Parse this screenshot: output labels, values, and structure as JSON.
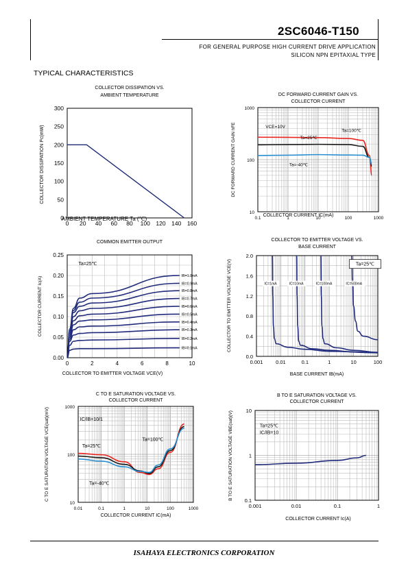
{
  "header": {
    "part_number": "2SC6046-T150",
    "line1": "FOR GENERAL PURPOSE HIGH CURRENT DRIVE APPLICATION",
    "line2": "SILICON NPN EPITAXIAL TYPE"
  },
  "section_title": "TYPICAL CHARACTERISTICS",
  "footer": "ISAHAYA ELECTRONICS CORPORATION",
  "chart_data": [
    {
      "type": "line",
      "title": [
        "COLLECTOR DISSIPATION VS.",
        "AMBIENT TEMPERATURE"
      ],
      "xlabel": "AMBIENT TEMPERATURE Ta (℃)",
      "ylabel": "COLLECTOR DISSIPATION  Pc(mW)",
      "xlim": [
        0,
        160
      ],
      "ylim": [
        0,
        300
      ],
      "x_ticks": [
        "0",
        "20",
        "40",
        "60",
        "80",
        "100",
        "120",
        "140",
        "160"
      ],
      "y_ticks": [
        "0",
        "50",
        "100",
        "150",
        "200",
        "250",
        "300"
      ],
      "grid": false,
      "series": [
        {
          "points": [
            [
              0,
              200
            ],
            [
              25,
              200
            ],
            [
              150,
              0
            ]
          ]
        }
      ]
    },
    {
      "type": "line",
      "title": [
        "DC FORWARD CURRENT GAIN VS.",
        "COLLECTOR CURRENT"
      ],
      "xlabel": "COLLECTOR CURRENT  IC(mA)",
      "ylabel": "DC FORWARD CURRENT GAIN  hFE",
      "xscale": "log",
      "yscale": "log",
      "xlim": [
        0.1,
        1000
      ],
      "ylim": [
        10,
        1000
      ],
      "x_ticks": [
        "0.1",
        "1",
        "10",
        "100",
        "1000"
      ],
      "y_ticks": [
        "10",
        "100",
        "1000"
      ],
      "grid": true,
      "annotations": [
        "VCE=10V",
        "Ta=25℃",
        "Ta=100℃",
        "Ta=-40℃"
      ],
      "series": [
        {
          "color": "#e8261e",
          "points": [
            [
              0.1,
              270
            ],
            [
              1,
              268
            ],
            [
              10,
              265
            ],
            [
              100,
              255
            ],
            [
              300,
              235
            ],
            [
              500,
              120
            ],
            [
              600,
              50
            ]
          ]
        },
        {
          "color": "#1a1a1a",
          "points": [
            [
              0.1,
              193
            ],
            [
              1,
              195
            ],
            [
              10,
              197
            ],
            [
              100,
              195
            ],
            [
              300,
              180
            ],
            [
              500,
              110
            ],
            [
              600,
              75
            ]
          ]
        },
        {
          "color": "#2a8fd0",
          "points": [
            [
              0.1,
              120
            ],
            [
              1,
              122
            ],
            [
              10,
              125
            ],
            [
              100,
              123
            ],
            [
              300,
              122
            ],
            [
              500,
              110
            ],
            [
              600,
              82
            ]
          ]
        }
      ]
    },
    {
      "type": "line",
      "title": [
        "COMMON EMITTER OUTPUT"
      ],
      "xlabel": "COLLECTOR TO EMITTER VOLTAGE  VCE(V)",
      "ylabel": "COLLECTOR CURRENT  Ic(A)",
      "xlim": [
        0,
        10
      ],
      "ylim": [
        0,
        0.25
      ],
      "x_ticks": [
        "0",
        "2",
        "4",
        "6",
        "8",
        "10"
      ],
      "y_ticks": [
        "0.00",
        "0.05",
        "0.10",
        "0.15",
        "0.20",
        "0.25"
      ],
      "grid": true,
      "annotations": [
        "Ta=25℃"
      ],
      "series": [
        {
          "name": "IB=1.0mA",
          "points": [
            [
              0,
              0
            ],
            [
              0.2,
              0.07
            ],
            [
              0.5,
              0.12
            ],
            [
              1,
              0.145
            ],
            [
              2,
              0.156
            ],
            [
              9,
              0.2
            ]
          ]
        },
        {
          "name": "IB=0.9mA",
          "points": [
            [
              0,
              0
            ],
            [
              0.2,
              0.07
            ],
            [
              0.5,
              0.115
            ],
            [
              1,
              0.135
            ],
            [
              2,
              0.145
            ],
            [
              9,
              0.181
            ]
          ]
        },
        {
          "name": "IB=0.8mA",
          "points": [
            [
              0,
              0
            ],
            [
              0.2,
              0.065
            ],
            [
              0.5,
              0.11
            ],
            [
              1,
              0.125
            ],
            [
              2,
              0.133
            ],
            [
              9,
              0.163
            ]
          ]
        },
        {
          "name": "IB=0.7mA",
          "points": [
            [
              0,
              0
            ],
            [
              0.2,
              0.06
            ],
            [
              0.5,
              0.1
            ],
            [
              1,
              0.114
            ],
            [
              2,
              0.12
            ],
            [
              9,
              0.144
            ]
          ]
        },
        {
          "name": "IB=0.6mA",
          "points": [
            [
              0,
              0
            ],
            [
              0.2,
              0.055
            ],
            [
              0.5,
              0.09
            ],
            [
              1,
              0.102
            ],
            [
              2,
              0.106
            ],
            [
              9,
              0.125
            ]
          ]
        },
        {
          "name": "IB=0.5mA",
          "points": [
            [
              0,
              0
            ],
            [
              0.2,
              0.05
            ],
            [
              0.5,
              0.08
            ],
            [
              1,
              0.089
            ],
            [
              2,
              0.092
            ],
            [
              9,
              0.106
            ]
          ]
        },
        {
          "name": "IB=0.4mA",
          "points": [
            [
              0,
              0
            ],
            [
              0.2,
              0.045
            ],
            [
              0.5,
              0.068
            ],
            [
              1,
              0.075
            ],
            [
              2,
              0.077
            ],
            [
              9,
              0.087
            ]
          ]
        },
        {
          "name": "IB=0.3mA",
          "points": [
            [
              0,
              0
            ],
            [
              0.2,
              0.04
            ],
            [
              0.5,
              0.055
            ],
            [
              1,
              0.059
            ],
            [
              2,
              0.061
            ],
            [
              9,
              0.068
            ]
          ]
        },
        {
          "name": "IB=0.2mA",
          "points": [
            [
              0,
              0
            ],
            [
              0.2,
              0.03
            ],
            [
              0.5,
              0.04
            ],
            [
              1,
              0.042
            ],
            [
              2,
              0.043
            ],
            [
              9,
              0.047
            ]
          ]
        },
        {
          "name": "IB=0.1mA",
          "points": [
            [
              0,
              0
            ],
            [
              0.2,
              0.018
            ],
            [
              0.5,
              0.021
            ],
            [
              1,
              0.022
            ],
            [
              2,
              0.022
            ],
            [
              9,
              0.024
            ]
          ]
        }
      ]
    },
    {
      "type": "line",
      "title": [
        "COLLECTOR TO EMITTER VOLTAGE VS.",
        "BASE CURRENT"
      ],
      "xlabel": "BASE CURRENT  IB(mA)",
      "ylabel": "COLLECTOR TO EMITTER VOLTAGE  VCE(V)",
      "xscale": "log",
      "xlim": [
        0.001,
        100
      ],
      "ylim": [
        0,
        2
      ],
      "x_ticks": [
        "0.001",
        "0.01",
        "0.1",
        "1",
        "10",
        "100"
      ],
      "y_ticks": [
        "0.0",
        "0.4",
        "0.8",
        "1.2",
        "1.6",
        "2.0"
      ],
      "grid": true,
      "annotations": [
        "Ta=25℃"
      ],
      "series": [
        {
          "name": "IC=1mA",
          "points": [
            [
              0.0045,
              2
            ],
            [
              0.0047,
              1.2
            ],
            [
              0.005,
              0.6
            ],
            [
              0.0055,
              0.35
            ],
            [
              0.0065,
              0.25
            ],
            [
              0.02,
              0.18
            ],
            [
              0.1,
              0.14
            ],
            [
              1,
              0.1
            ],
            [
              100,
              0.07
            ]
          ]
        },
        {
          "name": "IC=10mA",
          "points": [
            [
              0.045,
              2
            ],
            [
              0.047,
              1.2
            ],
            [
              0.05,
              0.6
            ],
            [
              0.055,
              0.3
            ],
            [
              0.065,
              0.22
            ],
            [
              0.2,
              0.15
            ],
            [
              1,
              0.12
            ],
            [
              10,
              0.09
            ],
            [
              100,
              0.07
            ]
          ]
        },
        {
          "name": "IC=100mA",
          "points": [
            [
              0.45,
              2
            ],
            [
              0.47,
              1.2
            ],
            [
              0.5,
              0.6
            ],
            [
              0.55,
              0.35
            ],
            [
              0.65,
              0.25
            ],
            [
              2,
              0.17
            ],
            [
              10,
              0.12
            ],
            [
              100,
              0.08
            ]
          ]
        },
        {
          "name": "IC=500mA",
          "points": [
            [
              8.5,
              2
            ],
            [
              9,
              1.5
            ],
            [
              10,
              1.0
            ],
            [
              12,
              0.7
            ],
            [
              15,
              0.5
            ],
            [
              25,
              0.4
            ],
            [
              100,
              0.33
            ]
          ]
        }
      ]
    },
    {
      "type": "line",
      "title": [
        "C TO E SATURATION VOLTAGE VS.",
        "COLLECTOR CURRENT"
      ],
      "xlabel": "COLLECTOR CURRENT  IC(mA)",
      "ylabel": "C TO E SATURATION VOLTAGE  VCE(sat)(mV)",
      "xscale": "log",
      "yscale": "log",
      "xlim": [
        0.01,
        1000
      ],
      "ylim": [
        10,
        1000
      ],
      "x_ticks": [
        "0.01",
        "0.1",
        "1",
        "10",
        "100",
        "1000"
      ],
      "y_ticks": [
        "10",
        "100",
        "1000"
      ],
      "grid": true,
      "annotations": [
        "IC/IB=10/1",
        "Ta=100℃",
        "Ta=25℃",
        "Ta=-40℃"
      ],
      "series": [
        {
          "color": "#e8261e",
          "points": [
            [
              0.01,
              105
            ],
            [
              0.1,
              98
            ],
            [
              1,
              70
            ],
            [
              5,
              42
            ],
            [
              12,
              38
            ],
            [
              30,
              50
            ],
            [
              100,
              110
            ],
            [
              400,
              430
            ]
          ]
        },
        {
          "color": "#1a1a1a",
          "points": [
            [
              0.01,
              92
            ],
            [
              0.1,
              85
            ],
            [
              1,
              62
            ],
            [
              5,
              45
            ],
            [
              12,
              40
            ],
            [
              30,
              55
            ],
            [
              100,
              120
            ],
            [
              400,
              380
            ]
          ]
        },
        {
          "color": "#2a8fd0",
          "points": [
            [
              0.01,
              80
            ],
            [
              0.1,
              72
            ],
            [
              1,
              55
            ],
            [
              5,
              44
            ],
            [
              12,
              42
            ],
            [
              30,
              60
            ],
            [
              100,
              130
            ],
            [
              400,
              350
            ]
          ]
        }
      ]
    },
    {
      "type": "line",
      "title": [
        "B TO E SATURATION VOLTAGE  VS.",
        "COLLECTOR CURRENT"
      ],
      "xlabel": "COLLECTOR CURRENT  Ic(A)",
      "ylabel": "B TO E SATURATION VOLTAGE  VBE(sat)(V)",
      "xscale": "log",
      "yscale": "log",
      "xlim": [
        0.001,
        1
      ],
      "ylim": [
        0.1,
        10
      ],
      "x_ticks": [
        "0.001",
        "0.01",
        "0.1",
        "1"
      ],
      "y_ticks": [
        "0.1",
        "1",
        "10"
      ],
      "grid": true,
      "annotations": [
        "Ta=25℃",
        "IC/IB=10"
      ],
      "series": [
        {
          "color": "#1f2a7a",
          "points": [
            [
              0.001,
              0.62
            ],
            [
              0.01,
              0.67
            ],
            [
              0.1,
              0.77
            ],
            [
              0.3,
              0.88
            ],
            [
              0.5,
              1.0
            ]
          ]
        }
      ]
    }
  ]
}
